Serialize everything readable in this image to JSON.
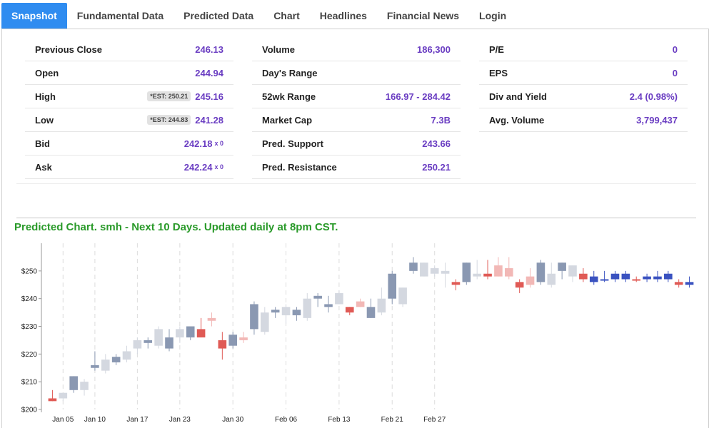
{
  "tabs": [
    {
      "label": "Snapshot",
      "active": true
    },
    {
      "label": "Fundamental Data",
      "active": false
    },
    {
      "label": "Predicted Data",
      "active": false
    },
    {
      "label": "Chart",
      "active": false
    },
    {
      "label": "Headlines",
      "active": false
    },
    {
      "label": "Financial News",
      "active": false
    },
    {
      "label": "Login",
      "active": false
    }
  ],
  "snapshot": {
    "col1": [
      {
        "label": "Previous Close",
        "value": "246.13"
      },
      {
        "label": "Open",
        "value": "244.94"
      },
      {
        "label": "High",
        "est": "*EST: 250.21",
        "value": "245.16"
      },
      {
        "label": "Low",
        "est": "*EST: 244.83",
        "value": "241.28"
      },
      {
        "label": "Bid",
        "value": "242.18",
        "qty": "x 0"
      },
      {
        "label": "Ask",
        "value": "242.24",
        "qty": "x 0"
      }
    ],
    "col2": [
      {
        "label": "Volume",
        "value": "186,300"
      },
      {
        "label": "Day's Range",
        "value": ""
      },
      {
        "label": "52wk Range",
        "value": "166.97 - 284.42"
      },
      {
        "label": "Market Cap",
        "value": "7.3B"
      },
      {
        "label": "Pred. Support",
        "value": "243.66"
      },
      {
        "label": "Pred. Resistance",
        "value": "250.21"
      }
    ],
    "col3": [
      {
        "label": "P/E",
        "value": "0"
      },
      {
        "label": "EPS",
        "value": "0"
      },
      {
        "label": "Div and Yield",
        "value": "2.4 (0.98%)"
      },
      {
        "label": "Avg. Volume",
        "value": "3,799,437"
      }
    ]
  },
  "chart_title": "Predicted Chart. smh - Next 10 Days. Updated daily at 8pm CST.",
  "colors": {
    "up": "#8a98b2",
    "up_light": "#d4d8e0",
    "down": "#e05a55",
    "down_light": "#f2b8b6",
    "predicted": "#3a52c0",
    "title": "#2a9a2a",
    "accent": "#2f8cf0",
    "value": "#6a3dc2"
  },
  "chart_data": {
    "type": "candlestick",
    "title": "Predicted Chart. smh - Next 10 Days. Updated daily at 8pm CST.",
    "ylim": [
      200,
      260
    ],
    "yticks": [
      200,
      210,
      220,
      230,
      240,
      250
    ],
    "ytick_labels": [
      "$200",
      "$210",
      "$220",
      "$230",
      "$240",
      "$250"
    ],
    "xticks": [
      {
        "label": "Jan 05",
        "index": 1
      },
      {
        "label": "Jan 10",
        "index": 4
      },
      {
        "label": "Jan 17",
        "index": 8
      },
      {
        "label": "Jan 23",
        "index": 12
      },
      {
        "label": "Jan 30",
        "index": 17
      },
      {
        "label": "Feb 06",
        "index": 22
      },
      {
        "label": "Feb 13",
        "index": 27
      },
      {
        "label": "Feb 21",
        "index": 32
      },
      {
        "label": "Feb 27",
        "index": 36
      }
    ],
    "candles": [
      {
        "o": 204,
        "h": 207,
        "l": 203,
        "c": 203,
        "k": "down"
      },
      {
        "o": 204,
        "h": 206,
        "l": 203,
        "c": 206,
        "k": "up_light"
      },
      {
        "o": 207,
        "h": 212,
        "l": 206,
        "c": 212,
        "k": "up"
      },
      {
        "o": 207,
        "h": 211,
        "l": 205,
        "c": 210,
        "k": "up_light"
      },
      {
        "o": 215,
        "h": 221,
        "l": 214,
        "c": 216,
        "k": "up"
      },
      {
        "o": 214,
        "h": 220,
        "l": 213,
        "c": 218,
        "k": "up_light"
      },
      {
        "o": 217,
        "h": 220,
        "l": 216,
        "c": 219,
        "k": "up"
      },
      {
        "o": 218,
        "h": 223,
        "l": 217,
        "c": 221,
        "k": "up_light"
      },
      {
        "o": 222,
        "h": 226,
        "l": 220,
        "c": 225,
        "k": "up_light"
      },
      {
        "o": 224,
        "h": 226,
        "l": 222,
        "c": 225,
        "k": "up"
      },
      {
        "o": 223,
        "h": 230,
        "l": 222,
        "c": 229,
        "k": "up_light"
      },
      {
        "o": 222,
        "h": 229,
        "l": 221,
        "c": 226,
        "k": "up"
      },
      {
        "o": 226,
        "h": 230,
        "l": 224,
        "c": 229,
        "k": "up_light"
      },
      {
        "o": 226,
        "h": 230,
        "l": 225,
        "c": 230,
        "k": "up"
      },
      {
        "o": 229,
        "h": 233,
        "l": 226,
        "c": 226,
        "k": "down"
      },
      {
        "o": 233,
        "h": 235,
        "l": 230,
        "c": 232,
        "k": "down_light"
      },
      {
        "o": 225,
        "h": 228,
        "l": 218,
        "c": 222,
        "k": "down"
      },
      {
        "o": 223,
        "h": 228,
        "l": 222,
        "c": 227,
        "k": "up"
      },
      {
        "o": 226,
        "h": 228,
        "l": 224,
        "c": 225,
        "k": "down_light"
      },
      {
        "o": 229,
        "h": 239,
        "l": 227,
        "c": 238,
        "k": "up"
      },
      {
        "o": 228,
        "h": 237,
        "l": 227,
        "c": 235,
        "k": "up_light"
      },
      {
        "o": 235,
        "h": 237,
        "l": 233,
        "c": 236,
        "k": "up"
      },
      {
        "o": 234,
        "h": 238,
        "l": 231,
        "c": 237,
        "k": "up_light"
      },
      {
        "o": 234,
        "h": 237,
        "l": 232,
        "c": 236,
        "k": "up"
      },
      {
        "o": 233,
        "h": 242,
        "l": 232,
        "c": 240,
        "k": "up_light"
      },
      {
        "o": 241,
        "h": 242,
        "l": 237,
        "c": 240,
        "k": "up"
      },
      {
        "o": 237,
        "h": 241,
        "l": 235,
        "c": 238,
        "k": "up"
      },
      {
        "o": 242,
        "h": 243,
        "l": 238,
        "c": 238,
        "k": "up_light"
      },
      {
        "o": 237,
        "h": 237,
        "l": 234,
        "c": 235,
        "k": "down"
      },
      {
        "o": 239,
        "h": 240,
        "l": 237,
        "c": 237,
        "k": "down_light"
      },
      {
        "o": 237,
        "h": 240,
        "l": 233,
        "c": 233,
        "k": "up"
      },
      {
        "o": 235,
        "h": 244,
        "l": 234,
        "c": 240,
        "k": "up_light"
      },
      {
        "o": 240,
        "h": 250,
        "l": 238,
        "c": 249,
        "k": "up"
      },
      {
        "o": 238,
        "h": 244,
        "l": 237,
        "c": 244,
        "k": "up_light"
      },
      {
        "o": 250,
        "h": 255,
        "l": 249,
        "c": 253,
        "k": "up"
      },
      {
        "o": 248,
        "h": 253,
        "l": 248,
        "c": 253,
        "k": "up_light"
      },
      {
        "o": 249,
        "h": 252,
        "l": 248,
        "c": 251,
        "k": "up_light"
      },
      {
        "o": 250,
        "h": 253,
        "l": 244,
        "c": 249,
        "k": "up_light"
      },
      {
        "o": 246,
        "h": 247,
        "l": 243,
        "c": 245,
        "k": "down"
      },
      {
        "o": 246,
        "h": 253,
        "l": 245,
        "c": 253,
        "k": "up"
      },
      {
        "o": 248,
        "h": 254,
        "l": 247,
        "c": 249,
        "k": "up_light"
      },
      {
        "o": 249,
        "h": 254,
        "l": 247,
        "c": 248,
        "k": "down"
      },
      {
        "o": 252,
        "h": 255,
        "l": 248,
        "c": 248,
        "k": "down_light"
      },
      {
        "o": 251,
        "h": 255,
        "l": 247,
        "c": 248,
        "k": "down_light"
      },
      {
        "o": 246,
        "h": 247,
        "l": 242,
        "c": 244,
        "k": "down"
      },
      {
        "o": 248,
        "h": 251,
        "l": 244,
        "c": 245,
        "k": "down_light"
      },
      {
        "o": 246,
        "h": 254,
        "l": 245,
        "c": 253,
        "k": "up"
      },
      {
        "o": 249,
        "h": 253,
        "l": 244,
        "c": 245,
        "k": "up_light"
      },
      {
        "o": 250,
        "h": 253,
        "l": 247,
        "c": 253,
        "k": "up"
      },
      {
        "o": 248,
        "h": 252,
        "l": 246,
        "c": 252,
        "k": "up_light"
      },
      {
        "o": 249,
        "h": 251,
        "l": 246,
        "c": 247,
        "k": "down"
      },
      {
        "o": 246,
        "h": 250,
        "l": 245,
        "c": 248,
        "k": "predicted"
      },
      {
        "o": 247,
        "h": 250,
        "l": 246,
        "c": 247,
        "k": "predicted"
      },
      {
        "o": 247,
        "h": 250,
        "l": 246,
        "c": 249,
        "k": "predicted"
      },
      {
        "o": 247,
        "h": 250,
        "l": 246,
        "c": 249,
        "k": "predicted"
      },
      {
        "o": 247,
        "h": 248,
        "l": 246,
        "c": 247,
        "k": "down"
      },
      {
        "o": 247,
        "h": 249,
        "l": 246,
        "c": 248,
        "k": "predicted"
      },
      {
        "o": 247,
        "h": 250,
        "l": 246,
        "c": 248,
        "k": "predicted"
      },
      {
        "o": 247,
        "h": 250,
        "l": 246,
        "c": 249,
        "k": "predicted"
      },
      {
        "o": 246,
        "h": 247,
        "l": 244,
        "c": 245,
        "k": "down"
      },
      {
        "o": 246,
        "h": 248,
        "l": 244,
        "c": 245,
        "k": "predicted"
      }
    ]
  }
}
